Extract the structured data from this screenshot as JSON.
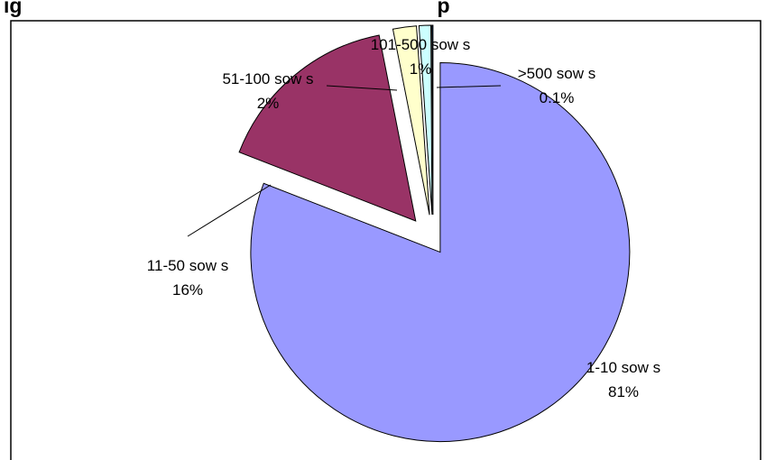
{
  "chart_data": {
    "type": "pie",
    "title": "ig",
    "title_trailing": "p",
    "slices": [
      {
        "label": "1-10 sow s",
        "value": 81,
        "percent_label": "81%",
        "color": "#9999ff"
      },
      {
        "label": "11-50 sow s",
        "value": 16,
        "percent_label": "16%",
        "color": "#993366"
      },
      {
        "label": "51-100 sow s",
        "value": 2,
        "percent_label": "2%",
        "color": "#ffffcc"
      },
      {
        "label": "101-500 sow s",
        "value": 1,
        "percent_label": "1%",
        "color": "#ccffff"
      },
      {
        "label": ">500 sow s",
        "value": 0.1,
        "percent_label": "0.1%",
        "color": "#003366"
      }
    ],
    "start_angle_deg": 0,
    "direction": "clockwise",
    "exploded": true,
    "legend": "none",
    "border_color": "#000000"
  }
}
